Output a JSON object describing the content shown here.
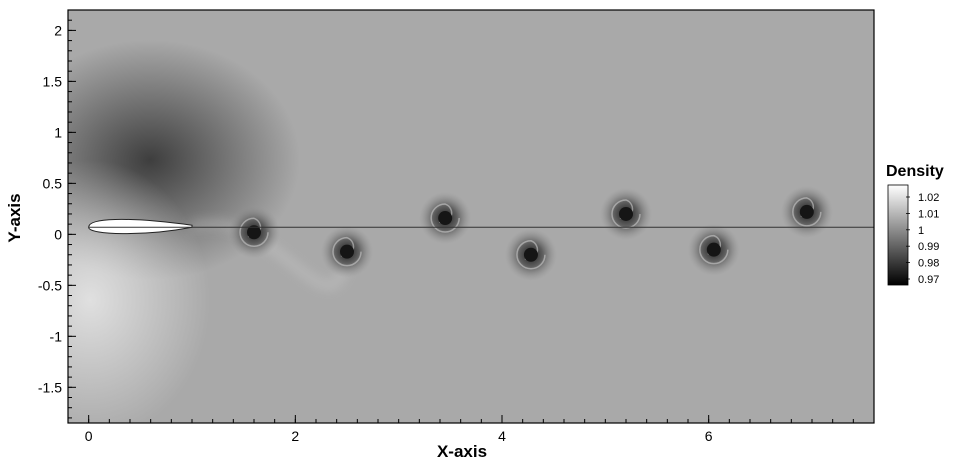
{
  "chart_data": {
    "type": "heatmap",
    "title": "",
    "xlabel": "X-axis",
    "ylabel": "Y-axis",
    "xlim": [
      -0.2,
      7.6
    ],
    "ylim": [
      -1.85,
      2.2
    ],
    "x_ticks": [
      0,
      2,
      4,
      6
    ],
    "y_ticks": [
      2,
      1.5,
      1,
      0.5,
      0,
      -0.5,
      -1,
      -1.5
    ],
    "x_tick_labels": [
      "0",
      "2",
      "4",
      "6"
    ],
    "y_tick_labels": [
      "2",
      "1.5",
      "1",
      "0.5",
      "0",
      "-0.5",
      "-1",
      "-1.5"
    ],
    "colorbar": {
      "title": "Density",
      "levels": [
        1.02,
        1.01,
        1,
        0.99,
        0.98,
        0.97
      ],
      "labels": [
        "1.02",
        "1.01",
        "1",
        "0.99",
        "0.98",
        "0.97"
      ],
      "min_color": "#000000",
      "max_color": "#ffffff"
    },
    "background_density": 0.995,
    "wake_centerline_y": 0.07,
    "airfoil": {
      "leading_edge_x": 0.0,
      "chord": 1.0,
      "y": 0.07
    },
    "vortices": [
      {
        "x": 1.6,
        "y": 0.02
      },
      {
        "x": 2.5,
        "y": -0.17
      },
      {
        "x": 3.45,
        "y": 0.16
      },
      {
        "x": 4.28,
        "y": -0.2
      },
      {
        "x": 5.2,
        "y": 0.2
      },
      {
        "x": 6.05,
        "y": -0.15
      },
      {
        "x": 6.95,
        "y": 0.22
      }
    ],
    "grid": false,
    "legend_position": "right"
  }
}
